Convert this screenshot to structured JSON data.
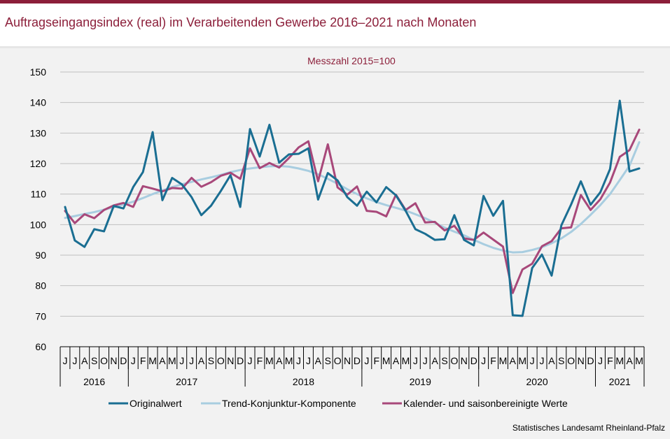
{
  "title": "Auftragseingangsindex (real) im Verarbeitenden Gewerbe 2016–2021 nach Monaten",
  "source": "Statistisches Landesamt Rheinland-Pfalz",
  "colors": {
    "title": "#8c1f3a",
    "original": "#1a6e92",
    "trend": "#a8cde0",
    "adjusted": "#a8487a"
  },
  "chart_data": {
    "type": "line",
    "subtitle": "Messzahl 2015=100",
    "ylim": [
      60,
      150
    ],
    "yticks": [
      60,
      70,
      80,
      90,
      100,
      110,
      120,
      130,
      140,
      150
    ],
    "grid": true,
    "legend_position": "bottom",
    "month_labels": [
      "J",
      "J",
      "A",
      "S",
      "O",
      "N",
      "D",
      "J",
      "F",
      "M",
      "A",
      "M",
      "J",
      "J",
      "A",
      "S",
      "O",
      "N",
      "D",
      "J",
      "F",
      "M",
      "A",
      "M",
      "J",
      "J",
      "A",
      "S",
      "O",
      "N",
      "D",
      "J",
      "F",
      "M",
      "A",
      "M",
      "J",
      "J",
      "A",
      "S",
      "O",
      "N",
      "D",
      "J",
      "F",
      "M",
      "A",
      "M",
      "J",
      "J",
      "A",
      "S",
      "O",
      "N",
      "D",
      "J",
      "F",
      "M",
      "A",
      "M"
    ],
    "years": [
      {
        "label": "2016",
        "months": 7
      },
      {
        "label": "2017",
        "months": 12
      },
      {
        "label": "2018",
        "months": 12
      },
      {
        "label": "2019",
        "months": 12
      },
      {
        "label": "2020",
        "months": 12
      },
      {
        "label": "2021",
        "months": 5
      }
    ],
    "series": [
      {
        "name": "Originalwert",
        "color": "#1a6e92",
        "values": [
          105.8,
          94.8,
          92.7,
          98.5,
          97.8,
          106.1,
          105.3,
          112.3,
          117.2,
          130.3,
          108.0,
          115.3,
          113.2,
          109.0,
          103.1,
          106.2,
          111.0,
          116.2,
          105.8,
          131.3,
          122.3,
          132.7,
          120.3,
          123.0,
          123.2,
          125.0,
          108.2,
          116.9,
          114.5,
          109.0,
          106.2,
          110.8,
          107.3,
          112.3,
          109.6,
          104.5,
          98.5,
          97.0,
          95.0,
          95.2,
          103.1,
          95.0,
          93.2,
          109.4,
          102.9,
          107.8,
          70.3,
          70.1,
          85.8,
          90.2,
          83.3,
          99.8,
          106.6,
          114.2,
          106.5,
          110.6,
          118.2,
          140.6,
          117.4,
          118.4
        ]
      },
      {
        "name": "Trend-Konjunktur-Komponente",
        "color": "#a8cde0",
        "values": [
          102.2,
          102.8,
          103.5,
          104.1,
          104.9,
          105.7,
          106.6,
          107.5,
          108.7,
          110.0,
          111.2,
          112.3,
          113.2,
          114.0,
          114.8,
          115.5,
          116.3,
          117.2,
          117.9,
          118.4,
          118.8,
          119.1,
          119.2,
          119.0,
          118.4,
          117.6,
          116.5,
          115.0,
          113.4,
          111.6,
          110.0,
          108.6,
          107.4,
          106.4,
          105.5,
          104.6,
          103.4,
          102.1,
          100.6,
          99.0,
          97.7,
          96.5,
          95.0,
          93.6,
          92.4,
          91.5,
          90.9,
          91.0,
          91.7,
          92.6,
          93.9,
          95.5,
          97.6,
          100.2,
          103.2,
          106.4,
          110.0,
          114.6,
          119.3,
          127.0
        ]
      },
      {
        "name": "Kalender- und saisonbereinigte Werte",
        "color": "#a8487a",
        "values": [
          104.5,
          100.5,
          103.4,
          102.1,
          104.8,
          106.3,
          107.1,
          105.8,
          112.6,
          111.8,
          110.9,
          112.0,
          111.8,
          115.3,
          112.4,
          113.9,
          116.0,
          117.0,
          115.0,
          125.0,
          118.5,
          120.2,
          118.7,
          121.8,
          125.3,
          127.3,
          114.2,
          126.3,
          112.2,
          109.8,
          112.5,
          104.5,
          104.2,
          102.7,
          109.8,
          104.8,
          107.0,
          100.7,
          100.9,
          98.1,
          99.6,
          95.5,
          95.0,
          97.4,
          95.1,
          92.8,
          77.6,
          85.3,
          87.2,
          92.9,
          94.6,
          98.8,
          99.1,
          109.7,
          104.8,
          108.3,
          113.8,
          122.2,
          124.4,
          131.1
        ]
      }
    ]
  }
}
